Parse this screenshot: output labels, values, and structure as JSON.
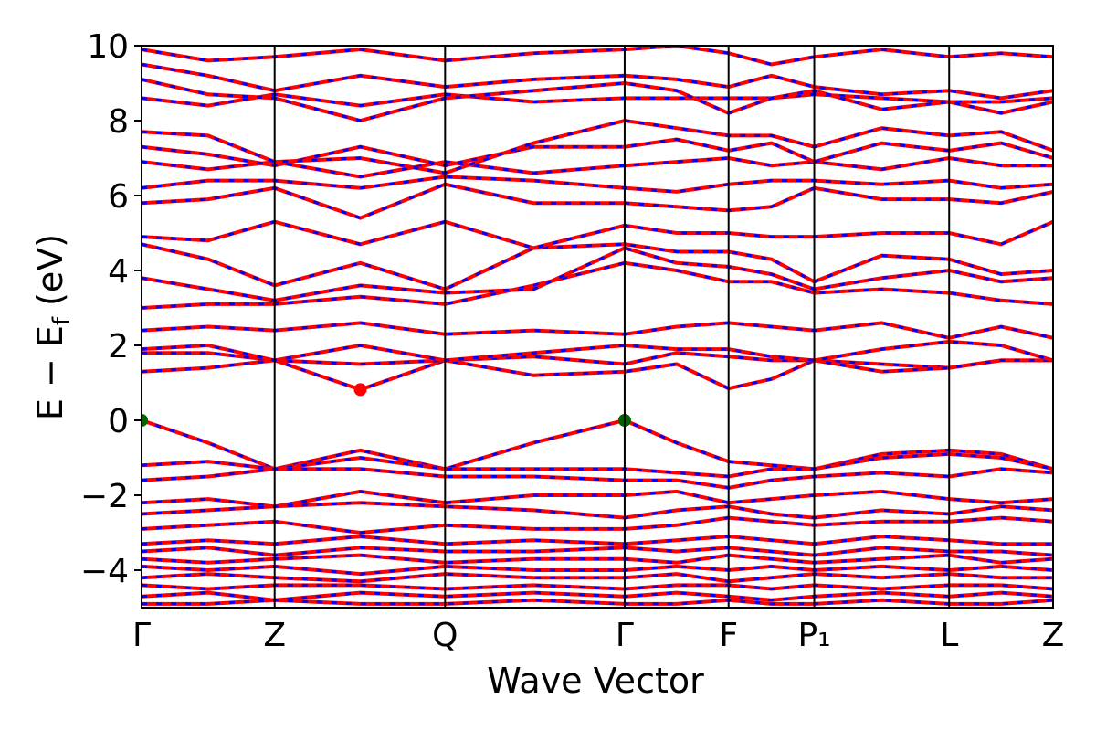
{
  "chart_data": {
    "type": "line",
    "xlabel": "Wave Vector",
    "ylabel": {
      "main": "E − E",
      "sub": "f",
      "unit": " (eV)"
    },
    "xlim": [
      0,
      1
    ],
    "ylim": [
      -5,
      10
    ],
    "xticks": [
      {
        "value": 0,
        "label": "Γ"
      },
      {
        "value": 0.146,
        "label": "Z"
      },
      {
        "value": 0.333,
        "label": "Q"
      },
      {
        "value": 0.53,
        "label": "Γ"
      },
      {
        "value": 0.644,
        "label": "F"
      },
      {
        "value": 0.738,
        "label": "P₁"
      },
      {
        "value": 0.886,
        "label": "L"
      },
      {
        "value": 1,
        "label": "Z"
      }
    ],
    "yticks": [
      {
        "value": -4,
        "label": "−4"
      },
      {
        "value": -2,
        "label": "−2"
      },
      0,
      2,
      4,
      6,
      8,
      10
    ],
    "color": "#ff0000",
    "dash_color": "#0000ff",
    "x": [
      0,
      0.073,
      0.146,
      0.24,
      0.333,
      0.43,
      0.53,
      0.587,
      0.644,
      0.691,
      0.738,
      0.812,
      0.886,
      0.943,
      1
    ],
    "bands": [
      {
        "values": [
          0,
          -0.6,
          -1.3,
          -0.8,
          -1.3,
          -0.6,
          0,
          -0.6,
          -1.1,
          -1.2,
          -1.3,
          -0.9,
          -0.8,
          -0.9,
          -1.3
        ]
      },
      {
        "values": [
          -1.2,
          -1.1,
          -1.3,
          -1.0,
          -1.3,
          -1.3,
          -1.3,
          -1.4,
          -1.5,
          -1.3,
          -1.3,
          -1.0,
          -0.9,
          -1.0,
          -1.3
        ]
      },
      {
        "values": [
          -1.6,
          -1.5,
          -1.3,
          -1.3,
          -1.5,
          -1.5,
          -1.6,
          -1.6,
          -1.8,
          -1.6,
          -1.5,
          -1.4,
          -1.5,
          -1.3,
          -1.4
        ]
      },
      {
        "values": [
          -2.2,
          -2.1,
          -2.3,
          -1.9,
          -2.2,
          -2.0,
          -2.0,
          -1.9,
          -2.2,
          -2.1,
          -2.0,
          -1.9,
          -2.1,
          -2.2,
          -2.1
        ]
      },
      {
        "values": [
          -2.5,
          -2.4,
          -2.3,
          -2.2,
          -2.3,
          -2.4,
          -2.6,
          -2.4,
          -2.3,
          -2.5,
          -2.6,
          -2.4,
          -2.5,
          -2.3,
          -2.4
        ]
      },
      {
        "values": [
          -2.9,
          -2.8,
          -2.7,
          -3.0,
          -2.8,
          -2.9,
          -2.9,
          -2.8,
          -2.6,
          -2.7,
          -2.8,
          -2.7,
          -2.7,
          -2.6,
          -2.7
        ]
      },
      {
        "values": [
          -3.3,
          -3.2,
          -3.3,
          -3.1,
          -3.3,
          -3.2,
          -3.3,
          -3.2,
          -3.1,
          -3.2,
          -3.3,
          -3.1,
          -3.2,
          -3.3,
          -3.3
        ]
      },
      {
        "values": [
          -3.5,
          -3.4,
          -3.6,
          -3.4,
          -3.5,
          -3.5,
          -3.4,
          -3.5,
          -3.4,
          -3.5,
          -3.6,
          -3.4,
          -3.5,
          -3.5,
          -3.6
        ]
      },
      {
        "values": [
          -3.7,
          -3.8,
          -3.7,
          -3.6,
          -3.8,
          -3.7,
          -3.7,
          -3.8,
          -3.6,
          -3.7,
          -3.8,
          -3.7,
          -3.6,
          -3.8,
          -3.7
        ]
      },
      {
        "values": [
          -3.9,
          -4.0,
          -3.9,
          -4.1,
          -3.9,
          -4.0,
          -4.0,
          -3.9,
          -4.0,
          -3.9,
          -4.0,
          -3.9,
          -4.0,
          -3.9,
          -4.0
        ]
      },
      {
        "values": [
          -4.2,
          -4.1,
          -4.2,
          -4.3,
          -4.1,
          -4.2,
          -4.2,
          -4.1,
          -4.3,
          -4.2,
          -4.1,
          -4.2,
          -4.1,
          -4.2,
          -4.2
        ]
      },
      {
        "values": [
          -4.4,
          -4.5,
          -4.4,
          -4.4,
          -4.5,
          -4.4,
          -4.5,
          -4.4,
          -4.4,
          -4.5,
          -4.4,
          -4.5,
          -4.4,
          -4.4,
          -4.5
        ]
      },
      {
        "values": [
          -4.7,
          -4.6,
          -4.8,
          -4.6,
          -4.7,
          -4.6,
          -4.7,
          -4.6,
          -4.7,
          -4.8,
          -4.7,
          -4.6,
          -4.7,
          -4.6,
          -4.7
        ]
      },
      {
        "values": [
          -4.9,
          -4.9,
          -4.8,
          -4.9,
          -4.9,
          -4.8,
          -4.9,
          -4.9,
          -4.8,
          -4.9,
          -4.9,
          -4.8,
          -4.9,
          -4.9,
          -4.8
        ]
      },
      {
        "values": [
          1.3,
          1.4,
          1.6,
          0.82,
          1.6,
          1.2,
          1.3,
          1.5,
          0.85,
          1.1,
          1.6,
          1.5,
          1.4,
          1.6,
          1.6
        ]
      },
      {
        "values": [
          1.8,
          1.8,
          1.6,
          1.5,
          1.6,
          1.7,
          1.5,
          1.8,
          1.7,
          1.6,
          1.6,
          1.3,
          1.4,
          1.6,
          1.6
        ]
      },
      {
        "values": [
          1.9,
          2.0,
          1.6,
          2.0,
          1.6,
          1.8,
          2.0,
          1.9,
          1.9,
          1.7,
          1.6,
          1.9,
          2.1,
          2.0,
          1.6
        ]
      },
      {
        "values": [
          2.4,
          2.5,
          2.4,
          2.6,
          2.3,
          2.4,
          2.3,
          2.5,
          2.6,
          2.5,
          2.4,
          2.6,
          2.2,
          2.5,
          2.2
        ]
      },
      {
        "values": [
          3.0,
          3.1,
          3.1,
          3.3,
          3.1,
          3.6,
          4.2,
          4.0,
          3.7,
          3.7,
          3.4,
          3.5,
          3.4,
          3.2,
          3.1
        ]
      },
      {
        "values": [
          3.8,
          3.5,
          3.2,
          3.6,
          3.4,
          3.5,
          4.6,
          4.2,
          4.1,
          3.9,
          3.5,
          3.8,
          4.0,
          3.7,
          3.8
        ]
      },
      {
        "values": [
          4.7,
          4.3,
          3.6,
          4.2,
          3.5,
          4.6,
          4.7,
          4.5,
          4.5,
          4.3,
          3.7,
          4.4,
          4.3,
          3.9,
          4.0
        ]
      },
      {
        "values": [
          4.9,
          4.8,
          5.3,
          4.7,
          5.3,
          4.6,
          5.2,
          5.0,
          5.0,
          4.9,
          4.9,
          5.0,
          5.0,
          4.7,
          5.3
        ]
      },
      {
        "values": [
          5.8,
          5.9,
          6.2,
          5.4,
          6.3,
          5.8,
          5.8,
          5.7,
          5.6,
          5.7,
          6.2,
          5.9,
          5.9,
          5.8,
          6.1
        ]
      },
      {
        "values": [
          6.2,
          6.4,
          6.4,
          6.2,
          6.5,
          6.4,
          6.2,
          6.1,
          6.3,
          6.4,
          6.4,
          6.3,
          6.4,
          6.2,
          6.3
        ]
      },
      {
        "values": [
          6.9,
          6.7,
          6.9,
          6.5,
          6.9,
          6.6,
          6.8,
          6.9,
          7.0,
          6.8,
          6.9,
          6.7,
          7.0,
          6.8,
          6.8
        ]
      },
      {
        "values": [
          7.3,
          7.1,
          6.8,
          7.3,
          6.8,
          7.3,
          7.3,
          7.5,
          7.2,
          7.4,
          6.9,
          7.4,
          7.2,
          7.4,
          7.0
        ]
      },
      {
        "values": [
          7.7,
          7.6,
          6.9,
          7.0,
          6.6,
          7.4,
          8.0,
          7.8,
          7.6,
          7.6,
          7.3,
          7.8,
          7.6,
          7.7,
          7.2
        ]
      },
      {
        "values": [
          8.6,
          8.4,
          8.7,
          8.4,
          8.7,
          8.5,
          8.6,
          8.6,
          8.6,
          8.6,
          8.7,
          8.6,
          8.5,
          8.5,
          8.6
        ]
      },
      {
        "values": [
          9.1,
          8.7,
          8.6,
          8.0,
          8.6,
          8.8,
          9.0,
          8.8,
          8.2,
          8.6,
          8.8,
          8.3,
          8.5,
          8.2,
          8.5
        ]
      },
      {
        "values": [
          9.5,
          9.2,
          8.8,
          9.2,
          8.9,
          9.1,
          9.2,
          9.1,
          8.9,
          9.2,
          8.9,
          8.7,
          8.8,
          8.6,
          8.8
        ]
      },
      {
        "values": [
          9.9,
          9.6,
          9.7,
          9.9,
          9.6,
          9.8,
          9.9,
          10.0,
          9.8,
          9.5,
          9.7,
          9.9,
          9.7,
          9.8,
          9.7
        ]
      }
    ],
    "points": [
      {
        "x": 0,
        "y": 0,
        "color": "#006400"
      },
      {
        "x": 0.53,
        "y": 0,
        "color": "#006400"
      },
      {
        "x": 0.24,
        "y": 0.82,
        "color": "#ff0000"
      }
    ]
  }
}
